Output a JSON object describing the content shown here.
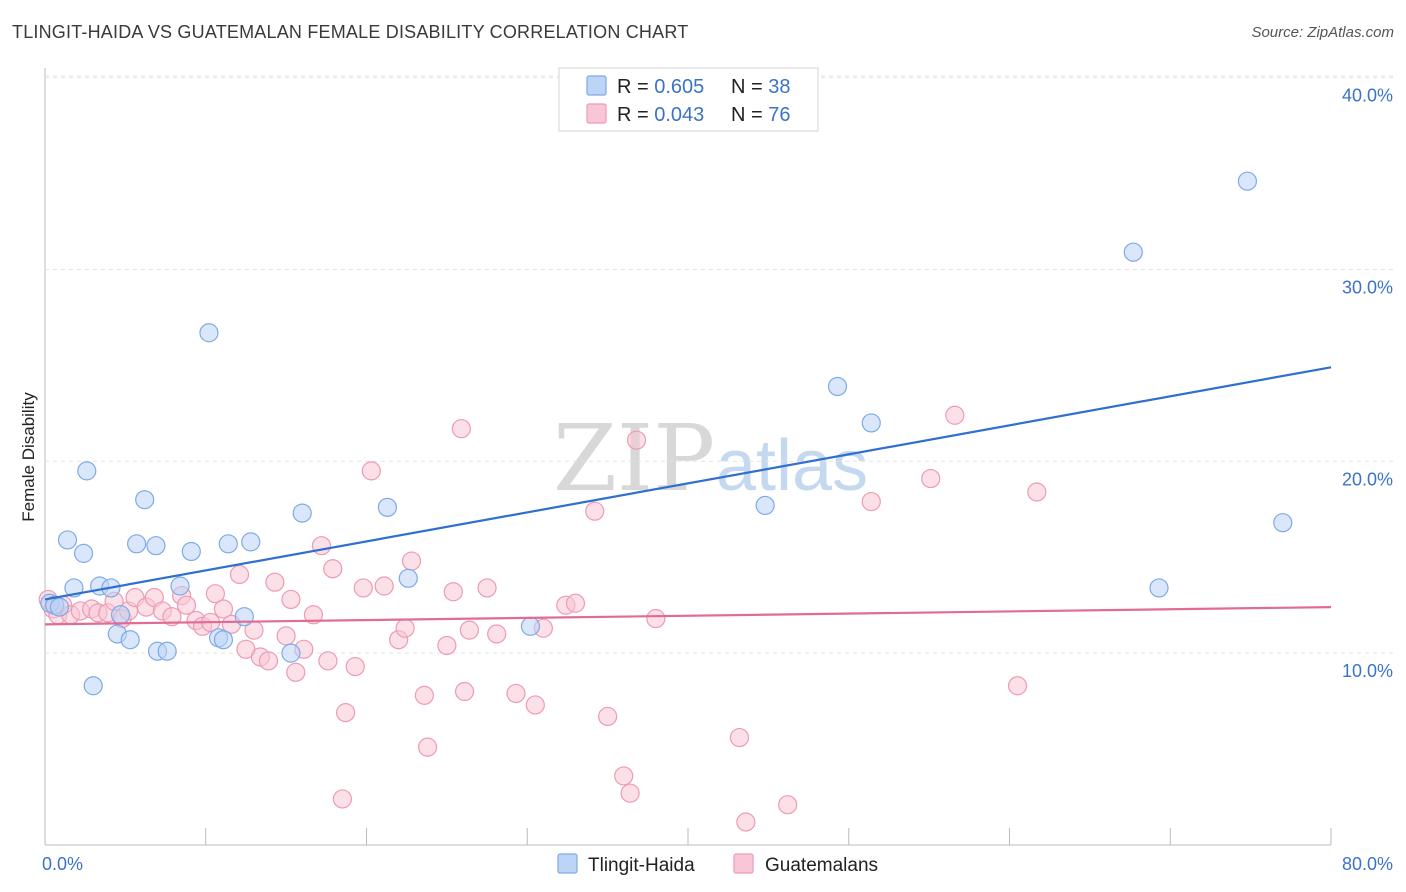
{
  "title": "TLINGIT-HAIDA VS GUATEMALAN FEMALE DISABILITY CORRELATION CHART",
  "source": "Source: ZipAtlas.com",
  "watermark": {
    "zip": "ZIP",
    "atlas": "atlas"
  },
  "colors": {
    "blue_fill": "#bcd4f5",
    "blue_stroke": "#7eaae6",
    "blue_line": "#2f6fd0",
    "pink_fill": "#f8c6d6",
    "pink_stroke": "#ee9ab4",
    "pink_line": "#e06b94",
    "tick_label": "#3b73c9",
    "grid": "#dddddd"
  },
  "legend": {
    "rows": [
      {
        "r_label": "R = ",
        "r_value": "0.605",
        "n_label": "N = ",
        "n_value": "38"
      },
      {
        "r_label": "R = ",
        "r_value": "0.043",
        "n_label": "N = ",
        "n_value": "76"
      }
    ]
  },
  "chart_data": {
    "type": "scatter",
    "title": "TLINGIT-HAIDA VS GUATEMALAN FEMALE DISABILITY CORRELATION CHART",
    "xlabel": "",
    "ylabel": "Female Disability",
    "xlim": [
      0,
      80
    ],
    "ylim": [
      0,
      40.5
    ],
    "x_tick_labels": [
      "0.0%",
      "80.0%"
    ],
    "y_ticks": [
      10,
      20,
      30,
      40
    ],
    "y_tick_labels": [
      "10.0%",
      "20.0%",
      "30.0%",
      "40.0%"
    ],
    "grid": true,
    "legend_position": "top-center",
    "series": [
      {
        "name": "Tlingit-Haida",
        "color": "#7eaae6",
        "trend": {
          "x": [
            0,
            80
          ],
          "y": [
            12.8,
            24.9
          ]
        },
        "points": [
          [
            0.3,
            12.6
          ],
          [
            0.6,
            12.5
          ],
          [
            1.4,
            15.9
          ],
          [
            1.8,
            13.4
          ],
          [
            2.4,
            15.2
          ],
          [
            2.6,
            19.5
          ],
          [
            3.0,
            8.3
          ],
          [
            3.4,
            13.5
          ],
          [
            4.1,
            13.4
          ],
          [
            4.5,
            11.0
          ],
          [
            4.7,
            12.0
          ],
          [
            5.3,
            10.7
          ],
          [
            5.7,
            15.7
          ],
          [
            6.2,
            18.0
          ],
          [
            6.9,
            15.6
          ],
          [
            7.0,
            10.1
          ],
          [
            7.6,
            10.1
          ],
          [
            8.4,
            13.5
          ],
          [
            9.1,
            15.3
          ],
          [
            10.2,
            26.7
          ],
          [
            10.8,
            10.8
          ],
          [
            11.1,
            10.7
          ],
          [
            11.4,
            15.7
          ],
          [
            12.4,
            11.9
          ],
          [
            12.8,
            15.8
          ],
          [
            15.3,
            10.0
          ],
          [
            16.0,
            17.3
          ],
          [
            21.3,
            17.6
          ],
          [
            22.6,
            13.9
          ],
          [
            30.2,
            11.4
          ],
          [
            44.8,
            17.7
          ],
          [
            49.3,
            23.9
          ],
          [
            51.4,
            22.0
          ],
          [
            67.7,
            30.9
          ],
          [
            69.3,
            13.4
          ],
          [
            74.8,
            34.6
          ],
          [
            77.0,
            16.8
          ],
          [
            0.9,
            12.4
          ]
        ]
      },
      {
        "name": "Guatemalans",
        "color": "#ee9ab4",
        "trend": {
          "x": [
            0,
            80
          ],
          "y": [
            11.5,
            12.4
          ]
        },
        "points": [
          [
            0.2,
            12.8
          ],
          [
            0.5,
            12.3
          ],
          [
            0.8,
            12.0
          ],
          [
            1.1,
            12.5
          ],
          [
            1.6,
            12.0
          ],
          [
            2.2,
            12.2
          ],
          [
            2.9,
            12.3
          ],
          [
            3.3,
            12.1
          ],
          [
            3.9,
            12.1
          ],
          [
            4.3,
            12.7
          ],
          [
            4.8,
            11.8
          ],
          [
            5.2,
            12.2
          ],
          [
            5.6,
            12.9
          ],
          [
            6.3,
            12.4
          ],
          [
            6.8,
            12.9
          ],
          [
            7.3,
            12.2
          ],
          [
            7.9,
            11.9
          ],
          [
            8.5,
            13.0
          ],
          [
            8.8,
            12.5
          ],
          [
            9.4,
            11.7
          ],
          [
            9.8,
            11.4
          ],
          [
            10.3,
            11.6
          ],
          [
            10.6,
            13.1
          ],
          [
            11.1,
            12.3
          ],
          [
            11.6,
            11.5
          ],
          [
            12.1,
            14.1
          ],
          [
            12.5,
            10.2
          ],
          [
            13.0,
            11.2
          ],
          [
            13.4,
            9.8
          ],
          [
            13.9,
            9.6
          ],
          [
            14.3,
            13.7
          ],
          [
            15.0,
            10.9
          ],
          [
            15.3,
            12.8
          ],
          [
            15.6,
            9.0
          ],
          [
            16.1,
            10.2
          ],
          [
            16.7,
            12.0
          ],
          [
            17.2,
            15.6
          ],
          [
            17.6,
            9.6
          ],
          [
            17.9,
            14.4
          ],
          [
            18.7,
            6.9
          ],
          [
            18.5,
            2.4
          ],
          [
            19.3,
            9.3
          ],
          [
            19.8,
            13.4
          ],
          [
            20.3,
            19.5
          ],
          [
            21.1,
            13.5
          ],
          [
            22.0,
            10.7
          ],
          [
            22.4,
            11.3
          ],
          [
            22.8,
            14.8
          ],
          [
            23.6,
            7.8
          ],
          [
            23.8,
            5.1
          ],
          [
            25.0,
            10.4
          ],
          [
            25.4,
            13.2
          ],
          [
            25.9,
            21.7
          ],
          [
            26.1,
            8.0
          ],
          [
            26.4,
            11.2
          ],
          [
            27.5,
            13.4
          ],
          [
            28.1,
            11.0
          ],
          [
            29.3,
            7.9
          ],
          [
            30.5,
            7.3
          ],
          [
            31.0,
            11.3
          ],
          [
            32.4,
            12.5
          ],
          [
            33.0,
            12.6
          ],
          [
            34.2,
            17.4
          ],
          [
            35.0,
            6.7
          ],
          [
            36.4,
            2.7
          ],
          [
            36.8,
            21.1
          ],
          [
            38.0,
            11.8
          ],
          [
            43.2,
            5.6
          ],
          [
            43.6,
            1.2
          ],
          [
            46.2,
            2.1
          ],
          [
            51.4,
            17.9
          ],
          [
            55.1,
            19.1
          ],
          [
            56.6,
            22.4
          ],
          [
            60.5,
            8.3
          ],
          [
            61.7,
            18.4
          ],
          [
            36.0,
            3.6
          ]
        ]
      }
    ]
  },
  "bottom_legend": [
    "Tlingit-Haida",
    "Guatemalans"
  ]
}
